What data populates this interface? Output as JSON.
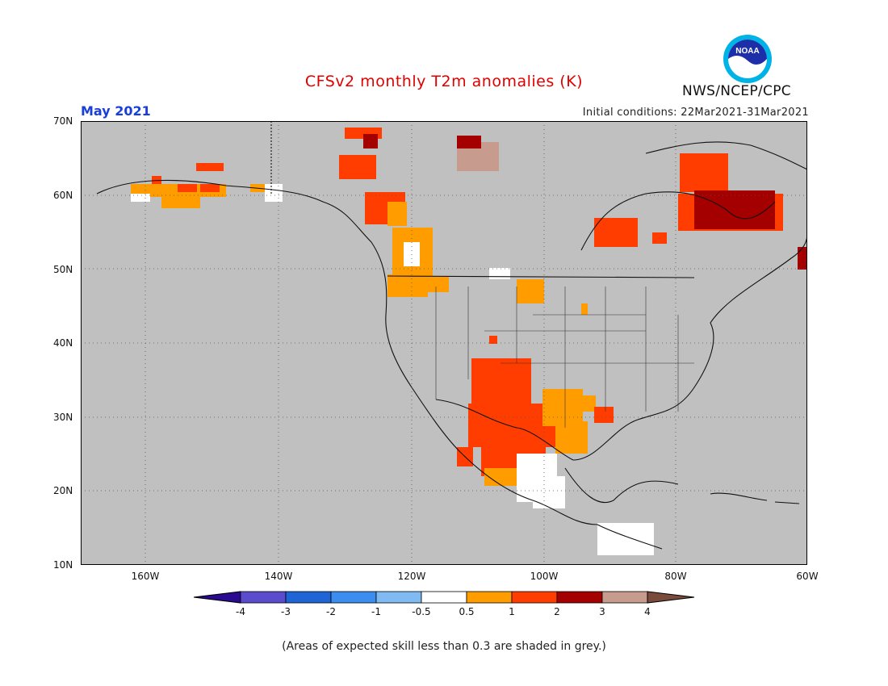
{
  "header": {
    "title": "CFSv2 monthly T2m anomalies (K)",
    "month": "May 2021",
    "initial_conditions": "Initial conditions: 22Mar2021-31Mar2021",
    "agency": "NWS/NCEP/CPC",
    "logo_text": "NOAA"
  },
  "map": {
    "lat_labels": [
      "70N",
      "60N",
      "50N",
      "40N",
      "30N",
      "20N",
      "10N"
    ],
    "lon_labels": [
      "160W",
      "140W",
      "120W",
      "100W",
      "80W",
      "60W"
    ],
    "region": "North America",
    "background_color": "#c0c0c0",
    "grid": true
  },
  "legend": {
    "labels": [
      "-4",
      "-3",
      "-2",
      "-1",
      "-0.5",
      "0.5",
      "1",
      "2",
      "3",
      "4"
    ],
    "colors": [
      "#2a0a90",
      "#5a4ccc",
      "#1f65d6",
      "#3b8ef0",
      "#7fbaf2",
      "#ffffff",
      "#ff9c00",
      "#ff3d00",
      "#a50000",
      "#c79b8e",
      "#7a4a3a"
    ]
  },
  "footnote": "(Areas of expected skill less than 0.3 are shaded in grey.)"
}
